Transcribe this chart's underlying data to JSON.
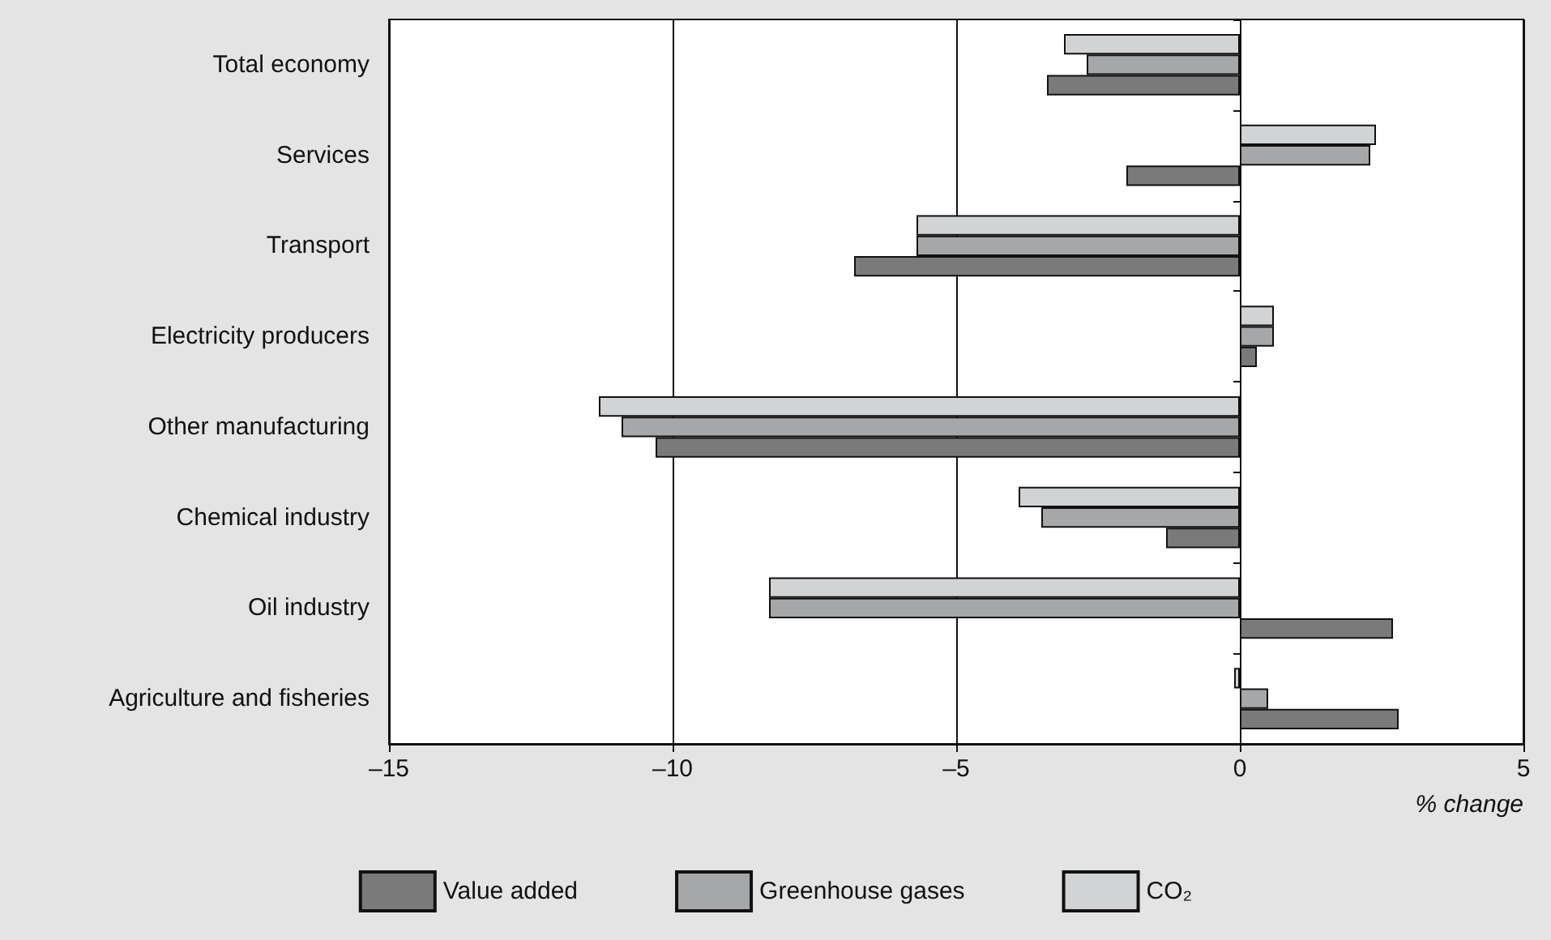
{
  "chart_data": {
    "type": "bar",
    "orientation": "horizontal",
    "xlabel": "% change",
    "categories": [
      "Total economy",
      "Services",
      "Transport",
      "Electricity producers",
      "Other manufacturing",
      "Chemical industry",
      "Oil industry",
      "Agriculture and fisheries"
    ],
    "series": [
      {
        "name": "Value added",
        "color": "#7a7a7a",
        "values": [
          -3.4,
          -2.0,
          -6.8,
          0.3,
          -10.3,
          -1.3,
          2.7,
          2.8
        ]
      },
      {
        "name": "Greenhouse gases",
        "color": "#a6a7a8",
        "values": [
          -2.7,
          2.3,
          -5.7,
          0.6,
          -10.9,
          -3.5,
          -8.3,
          0.5
        ]
      },
      {
        "name": "CO₂",
        "color": "#d2d3d4",
        "values": [
          -3.1,
          2.4,
          -5.7,
          0.6,
          -11.3,
          -3.9,
          -8.3,
          -0.1
        ]
      }
    ],
    "xlim": [
      -15,
      5
    ],
    "xticks": [
      {
        "value": -15,
        "label": "–15"
      },
      {
        "value": -10,
        "label": "–10"
      },
      {
        "value": -5,
        "label": "–5"
      },
      0,
      5
    ],
    "grid": "x",
    "legend": "bottom"
  }
}
